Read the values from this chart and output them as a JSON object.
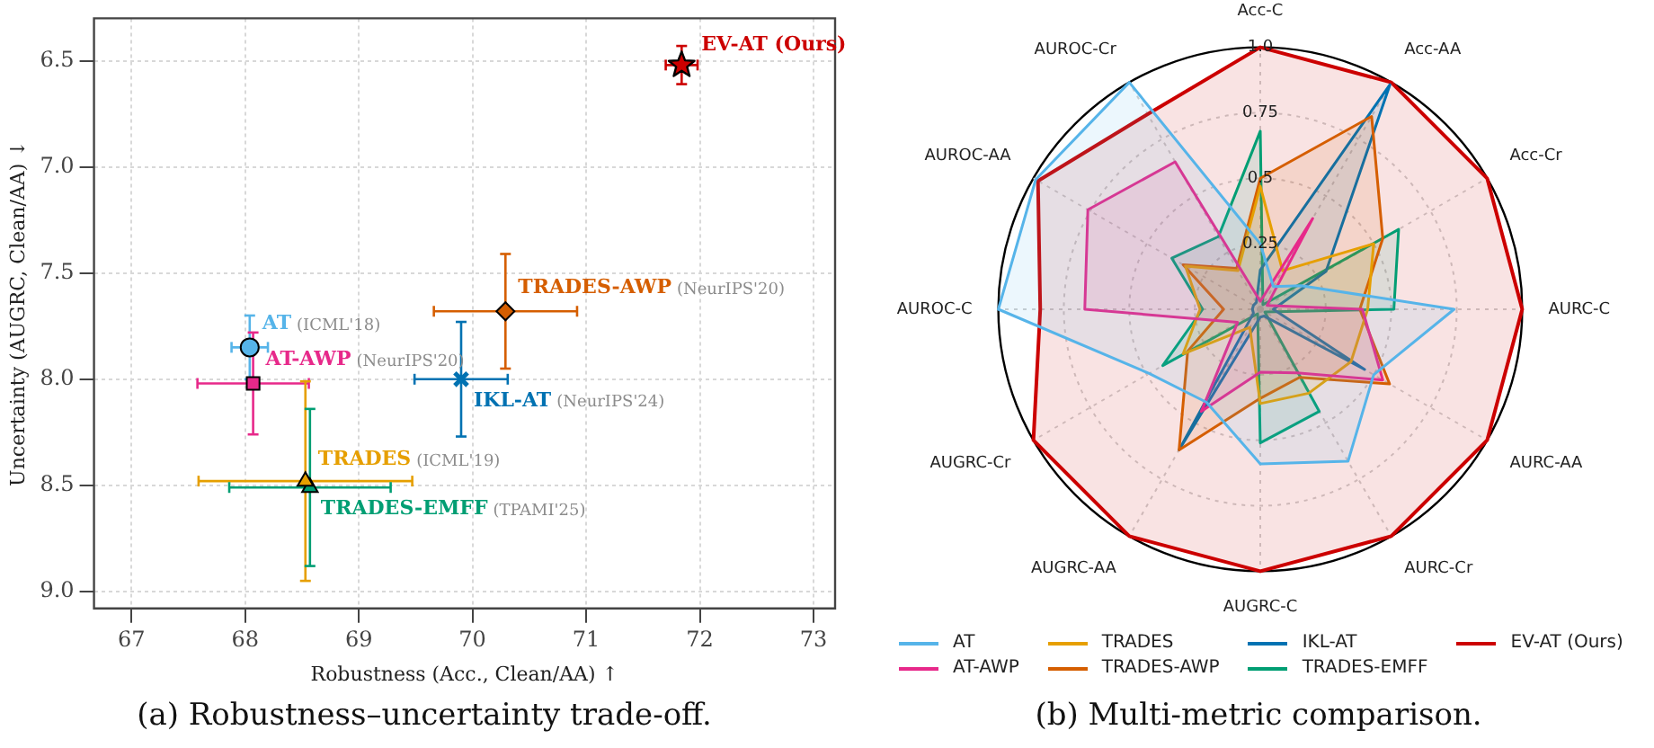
{
  "chart_data": [
    {
      "type": "scatter",
      "title": "(a) Robustness–uncertainty trade-off.",
      "xlabel": "Robustness (Acc., Clean/AA) ↑",
      "ylabel": "Uncertainty (AUGRC, Clean/AA) ↓",
      "xlim": [
        66.67,
        73.19
      ],
      "ylim": [
        9.08,
        6.3
      ],
      "xticks": [
        67,
        68,
        69,
        70,
        71,
        72,
        73
      ],
      "yticks": [
        6.5,
        {
          "value": 7,
          "label": "7.0"
        },
        7.5,
        {
          "value": 8,
          "label": "8.0"
        },
        8.5,
        {
          "value": 9,
          "label": "9.0"
        }
      ],
      "grid": true,
      "series": [
        {
          "name": "AT",
          "color": "#56b4e9",
          "marker": "circle",
          "x": [
            68.04
          ],
          "values": [
            7.85
          ],
          "errors": [
            0.15
          ],
          "xerrors": [
            0.16
          ]
        },
        {
          "name": "AT-AWP",
          "color": "#e7298a",
          "marker": "square",
          "x": [
            68.07
          ],
          "values": [
            8.02
          ],
          "errors": [
            0.24
          ],
          "xerrors": [
            0.49
          ]
        },
        {
          "name": "TRADES",
          "color": "#e69f00",
          "marker": "triangle",
          "x": [
            68.53
          ],
          "values": [
            8.48
          ],
          "errors": [
            0.47
          ],
          "xerrors": [
            0.94
          ]
        },
        {
          "name": "TRADES-AWP",
          "color": "#d55e00",
          "marker": "diamond",
          "x": [
            70.29
          ],
          "values": [
            7.68
          ],
          "errors": [
            0.27
          ],
          "xerrors": [
            0.63
          ]
        },
        {
          "name": "IKL-AT",
          "color": "#0072b2",
          "marker": "cross",
          "x": [
            69.9
          ],
          "values": [
            8.0
          ],
          "errors": [
            0.27
          ],
          "xerrors": [
            0.41
          ]
        },
        {
          "name": "TRADES-EMFF",
          "color": "#009e73",
          "marker": "triangle",
          "x": [
            68.57
          ],
          "values": [
            8.51
          ],
          "errors": [
            0.37
          ],
          "xerrors": [
            0.71
          ]
        },
        {
          "name": "EV-AT (Ours)",
          "color": "#cc0000",
          "marker": "star",
          "x": [
            71.84
          ],
          "values": [
            6.52
          ],
          "errors": [
            0.09
          ],
          "xerrors": [
            0.14
          ]
        }
      ],
      "annotations": [
        "(ICML'18)",
        "(NeurIPS'20)",
        "(ICML'19)",
        "(NeurIPS'20)",
        "(NeurIPS'24)",
        "(TPAMI'25)"
      ]
    },
    {
      "type": "radar",
      "title": "(b) Multi-metric comparison.",
      "legend": "bottom",
      "grid": true,
      "categories": [
        "Acc-C",
        "Acc-AA",
        "Acc-Cr",
        "AURC-C",
        "AURC-AA",
        "AURC-Cr",
        "AUGRC-C",
        "AUGRC-AA",
        "AUGRC-Cr",
        "AUROC-C",
        "AUROC-AA",
        "AUROC-Cr"
      ],
      "ylim": [
        0,
        1
      ],
      "yticks": [
        0.25,
        0.5,
        0.75,
        {
          "value": 1,
          "label": "1.0"
        }
      ],
      "series": [
        {
          "name": "AT",
          "color": "#56b4e9",
          "values": [
            0.25,
            0.1,
            0.18,
            0.74,
            0.5,
            0.67,
            0.59,
            0.41,
            0.49,
            1.0,
            0.99,
            1.0
          ]
        },
        {
          "name": "AT-AWP",
          "color": "#e7298a",
          "values": [
            0.03,
            0.4,
            0.03,
            0.39,
            0.54,
            0.28,
            0.24,
            0.45,
            0.1,
            0.67,
            0.76,
            0.65
          ]
        },
        {
          "name": "TRADES",
          "color": "#e69f00",
          "values": [
            0.47,
            0.17,
            0.5,
            0.41,
            0.4,
            0.37,
            0.36,
            0.08,
            0.34,
            0.23,
            0.33,
            0.17
          ]
        },
        {
          "name": "TRADES-AWP",
          "color": "#d55e00",
          "values": [
            0.5,
            0.85,
            0.54,
            0.38,
            0.57,
            0.3,
            0.34,
            0.62,
            0.32,
            0.14,
            0.34,
            0.18
          ]
        },
        {
          "name": "IKL-AT",
          "color": "#0072b2",
          "values": [
            0.15,
            0.99,
            0.29,
            0.05,
            0.46,
            0.03,
            0.03,
            0.62,
            0.03,
            0.03,
            0.03,
            0.03
          ]
        },
        {
          "name": "TRADES-EMFF",
          "color": "#009e73",
          "values": [
            0.68,
            0.02,
            0.61,
            0.51,
            0.02,
            0.45,
            0.51,
            0.02,
            0.43,
            0.22,
            0.39,
            0.32
          ]
        },
        {
          "name": "EV-AT (Ours)",
          "color": "#cc0000",
          "values": [
            1,
            1,
            1,
            1,
            1,
            1,
            1,
            1,
            1,
            0.84,
            0.98,
            0.86
          ]
        }
      ]
    }
  ]
}
